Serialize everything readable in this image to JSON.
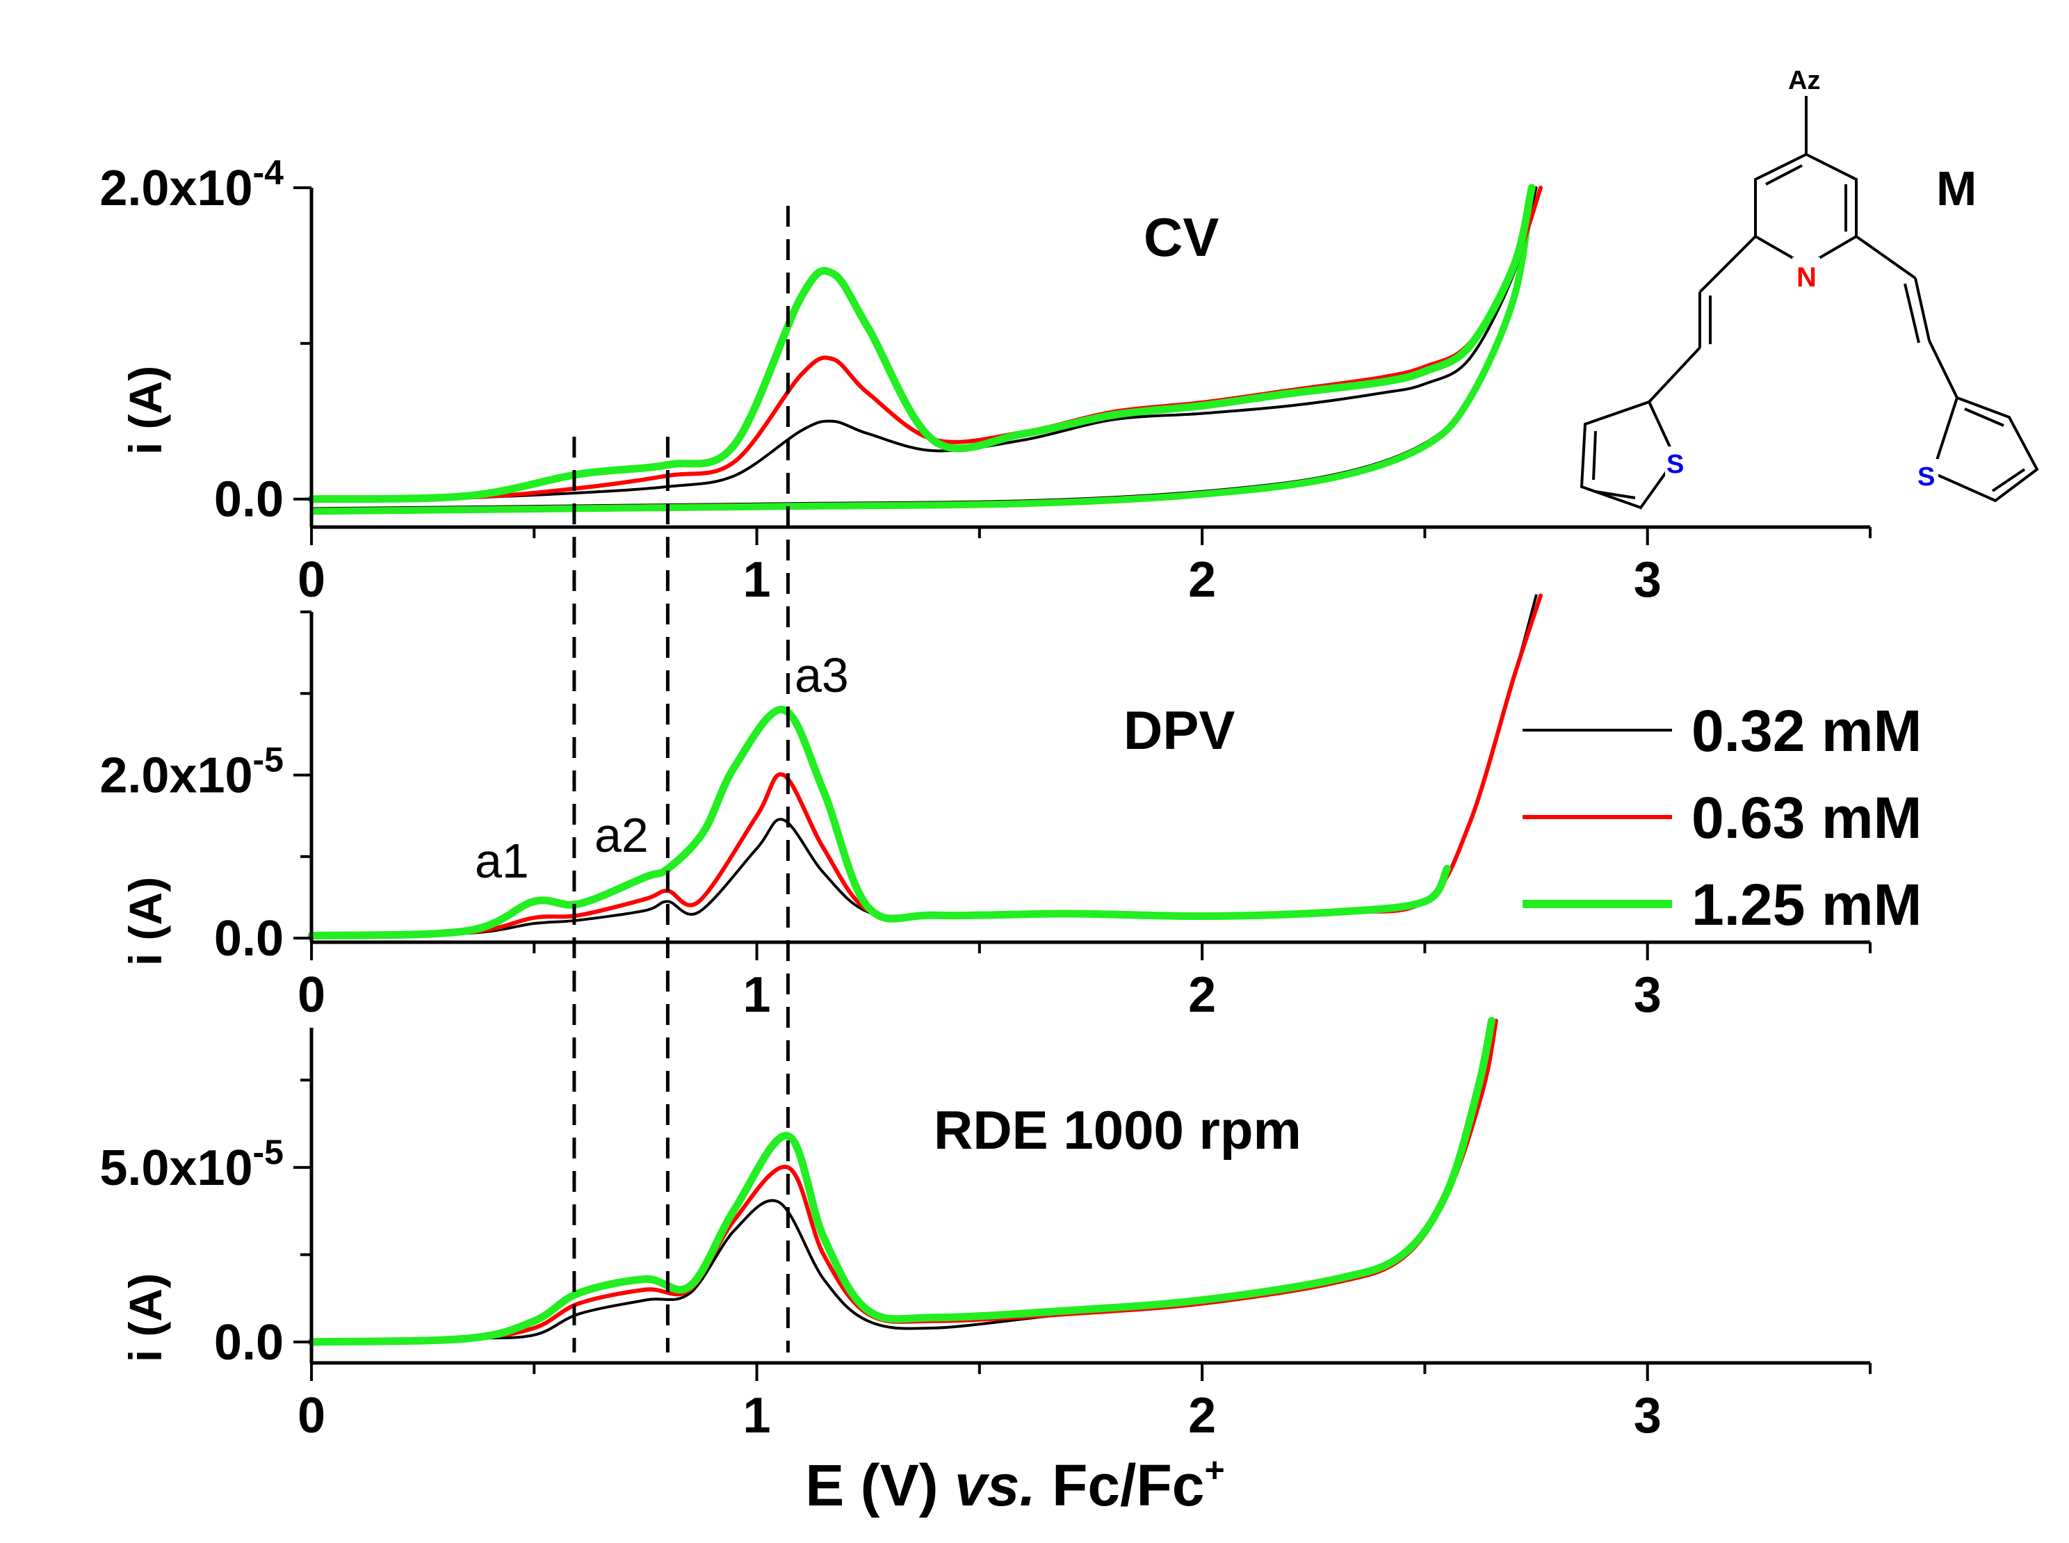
{
  "figure": {
    "xlabel_main": "E (V) ",
    "xlabel_italic": "vs.",
    "xlabel_ref": " Fc/Fc",
    "xlabel_sup": "+",
    "molecule": {
      "label": "M",
      "substituent": "Az",
      "nitrogen": "N",
      "sulfur_left": "S",
      "sulfur_right": "S"
    },
    "legend": [
      {
        "label": "0.32 mM",
        "color": "#000000"
      },
      {
        "label": "0.63 mM",
        "color": "#ff0000"
      },
      {
        "label": "1.25 mM",
        "color": "#22ee22"
      }
    ]
  },
  "chart_data": [
    {
      "type": "line",
      "title": "CV",
      "xlabel": "",
      "ylabel": "i (A)",
      "xlim": [
        0,
        3.5
      ],
      "ylim": [
        -1.8e-05,
        0.0002
      ],
      "x_ticks": [
        "0",
        "1",
        "2",
        "3"
      ],
      "y_ticks": [
        {
          "mantissa": "0.0",
          "exp": ""
        },
        {
          "mantissa": "2.0x10",
          "exp": "-4"
        }
      ],
      "series": [
        {
          "name": "0.32 mM",
          "color": "#000000",
          "x": [
            0,
            0.35,
            0.6,
            0.8,
            0.95,
            1.1,
            1.17,
            1.25,
            1.4,
            1.6,
            1.8,
            2.0,
            2.2,
            2.4,
            2.5,
            2.6,
            2.7,
            2.75
          ],
          "y": [
            0,
            1e-06,
            4e-06,
            8e-06,
            1.5e-05,
            4.4e-05,
            5e-05,
            4.2e-05,
            3.1e-05,
            3.8e-05,
            5.1e-05,
            5.5e-05,
            6e-05,
            6.8e-05,
            7.4e-05,
            9e-05,
            0.000145,
            0.0002
          ]
        },
        {
          "name": "0.63 mM",
          "color": "#ff0000",
          "x": [
            0,
            0.35,
            0.6,
            0.8,
            0.95,
            1.1,
            1.17,
            1.25,
            1.4,
            1.6,
            1.8,
            2.0,
            2.2,
            2.4,
            2.5,
            2.6,
            2.7,
            2.76
          ],
          "y": [
            0,
            1e-06,
            7e-06,
            1.5e-05,
            2.4e-05,
            8e-05,
            9e-05,
            6.8e-05,
            3.8e-05,
            4.3e-05,
            5.6e-05,
            6.2e-05,
            7e-05,
            7.8e-05,
            8.5e-05,
            0.0001,
            0.00015,
            0.0002
          ]
        },
        {
          "name": "1.25 mM",
          "color": "#22ee22",
          "x": [
            0,
            0.35,
            0.6,
            0.8,
            0.95,
            1.1,
            1.17,
            1.25,
            1.4,
            1.6,
            1.8,
            2.0,
            2.2,
            2.4,
            2.5,
            2.6,
            2.7,
            2.74
          ],
          "y": [
            0,
            2e-06,
            1.6e-05,
            2.2e-05,
            3.5e-05,
            0.00013,
            0.000145,
            0.00011,
            3.7e-05,
            4.2e-05,
            5.4e-05,
            6e-05,
            6.8e-05,
            7.5e-05,
            8.2e-05,
            9.8e-05,
            0.00015,
            0.0002
          ]
        }
      ],
      "return_scan": {
        "x": [
          0,
          1.0,
          1.6,
          2.0,
          2.3,
          2.5,
          2.6,
          2.7,
          2.74
        ],
        "y": [
          -7e-06,
          -4e-06,
          -2e-06,
          4e-06,
          1.5e-05,
          3.5e-05,
          6.5e-05,
          0.00013,
          0.0002
        ]
      }
    },
    {
      "type": "line",
      "title": "DPV",
      "xlabel": "",
      "ylabel": "i (A)",
      "xlim": [
        0,
        3.5
      ],
      "ylim": [
        -5e-07,
        4e-05
      ],
      "x_ticks": [
        "0",
        "1",
        "2",
        "3"
      ],
      "y_ticks": [
        {
          "mantissa": "0.0",
          "exp": ""
        },
        {
          "mantissa": "2.0x10",
          "exp": "-5"
        }
      ],
      "peak_labels": [
        "a1",
        "a2",
        "a3"
      ],
      "series": [
        {
          "name": "0.32 mM",
          "color": "#000000",
          "x": [
            0,
            0.35,
            0.5,
            0.6,
            0.75,
            0.8,
            0.87,
            1.0,
            1.06,
            1.15,
            1.25,
            1.4,
            1.7,
            2.0,
            2.3,
            2.5,
            2.6,
            2.7,
            2.75
          ],
          "y": [
            3e-07,
            6e-07,
            1.8e-06,
            2.2e-06,
            3.4e-06,
            4.5e-06,
            3.2e-06,
            1.1e-05,
            1.45e-05,
            8e-06,
            3.2e-06,
            2.8e-06,
            3e-06,
            2.7e-06,
            3.2e-06,
            4.5e-06,
            1.4e-05,
            3.2e-05,
            4.2e-05
          ]
        },
        {
          "name": "0.63 mM",
          "color": "#ff0000",
          "x": [
            0,
            0.35,
            0.5,
            0.6,
            0.75,
            0.8,
            0.87,
            1.0,
            1.06,
            1.15,
            1.25,
            1.4,
            1.7,
            2.0,
            2.3,
            2.5,
            2.6,
            2.7,
            2.76
          ],
          "y": [
            3e-07,
            7e-07,
            2.5e-06,
            2.8e-06,
            4.8e-06,
            5.8e-06,
            4.5e-06,
            1.5e-05,
            2e-05,
            1.1e-05,
            3.4e-06,
            2.8e-06,
            3e-06,
            2.7e-06,
            3.2e-06,
            4.5e-06,
            1.4e-05,
            3.2e-05,
            4.2e-05
          ]
        },
        {
          "name": "1.25 mM",
          "color": "#22ee22",
          "x": [
            0,
            0.35,
            0.5,
            0.6,
            0.75,
            0.8,
            0.88,
            0.95,
            1.06,
            1.15,
            1.25,
            1.4,
            1.7,
            2.0,
            2.3,
            2.5,
            2.55
          ],
          "y": [
            3e-07,
            9e-07,
            4.5e-06,
            4.2e-06,
            7.5e-06,
            8.5e-06,
            1.3e-05,
            2.1e-05,
            2.8e-05,
            1.8e-05,
            3.8e-06,
            2.8e-06,
            3e-06,
            2.7e-06,
            3.2e-06,
            4.5e-06,
            8.5e-06
          ]
        }
      ]
    },
    {
      "type": "line",
      "title": "RDE 1000 rpm",
      "xlabel": "E (V) vs. Fc/Fc+",
      "ylabel": "i (A)",
      "xlim": [
        0,
        3.5
      ],
      "ylim": [
        -6e-06,
        9e-05
      ],
      "x_ticks": [
        "0",
        "1",
        "2",
        "3"
      ],
      "y_ticks": [
        {
          "mantissa": "0.0",
          "exp": ""
        },
        {
          "mantissa": "5.0x10",
          "exp": "-5"
        }
      ],
      "series": [
        {
          "name": "0.32 mM",
          "color": "#000000",
          "x": [
            0,
            0.35,
            0.5,
            0.6,
            0.75,
            0.85,
            0.95,
            1.05,
            1.15,
            1.25,
            1.4,
            1.7,
            2.0,
            2.3,
            2.45,
            2.55,
            2.62,
            2.65
          ],
          "y": [
            0,
            1e-06,
            2e-06,
            8e-06,
            1.2e-05,
            1.4e-05,
            3.2e-05,
            4e-05,
            1.8e-05,
            6e-06,
            4e-06,
            8e-06,
            1.1e-05,
            1.7e-05,
            2.4e-05,
            4.2e-05,
            7.2e-05,
            9.2e-05
          ]
        },
        {
          "name": "0.63 mM",
          "color": "#ff0000",
          "x": [
            0,
            0.35,
            0.5,
            0.6,
            0.75,
            0.85,
            0.95,
            1.07,
            1.15,
            1.25,
            1.4,
            1.7,
            2.0,
            2.3,
            2.45,
            2.55,
            2.63,
            2.66
          ],
          "y": [
            0,
            1e-06,
            4e-06,
            1.1e-05,
            1.5e-05,
            1.5e-05,
            3.5e-05,
            5e-05,
            2.5e-05,
            8e-06,
            6e-06,
            8e-06,
            1.1e-05,
            1.7e-05,
            2.4e-05,
            4.2e-05,
            7.2e-05,
            9.2e-05
          ]
        },
        {
          "name": "1.25 mM",
          "color": "#22ee22",
          "x": [
            0,
            0.35,
            0.5,
            0.6,
            0.75,
            0.85,
            0.95,
            1.07,
            1.15,
            1.25,
            1.4,
            1.7,
            2.0,
            2.3,
            2.45,
            2.55,
            2.62,
            2.65
          ],
          "y": [
            0,
            1e-06,
            6e-06,
            1.4e-05,
            1.8e-05,
            1.6e-05,
            3.8e-05,
            5.9e-05,
            3e-05,
            9e-06,
            7e-06,
            9e-06,
            1.2e-05,
            1.8e-05,
            2.5e-05,
            4.3e-05,
            7.3e-05,
            9.2e-05
          ]
        }
      ]
    }
  ]
}
